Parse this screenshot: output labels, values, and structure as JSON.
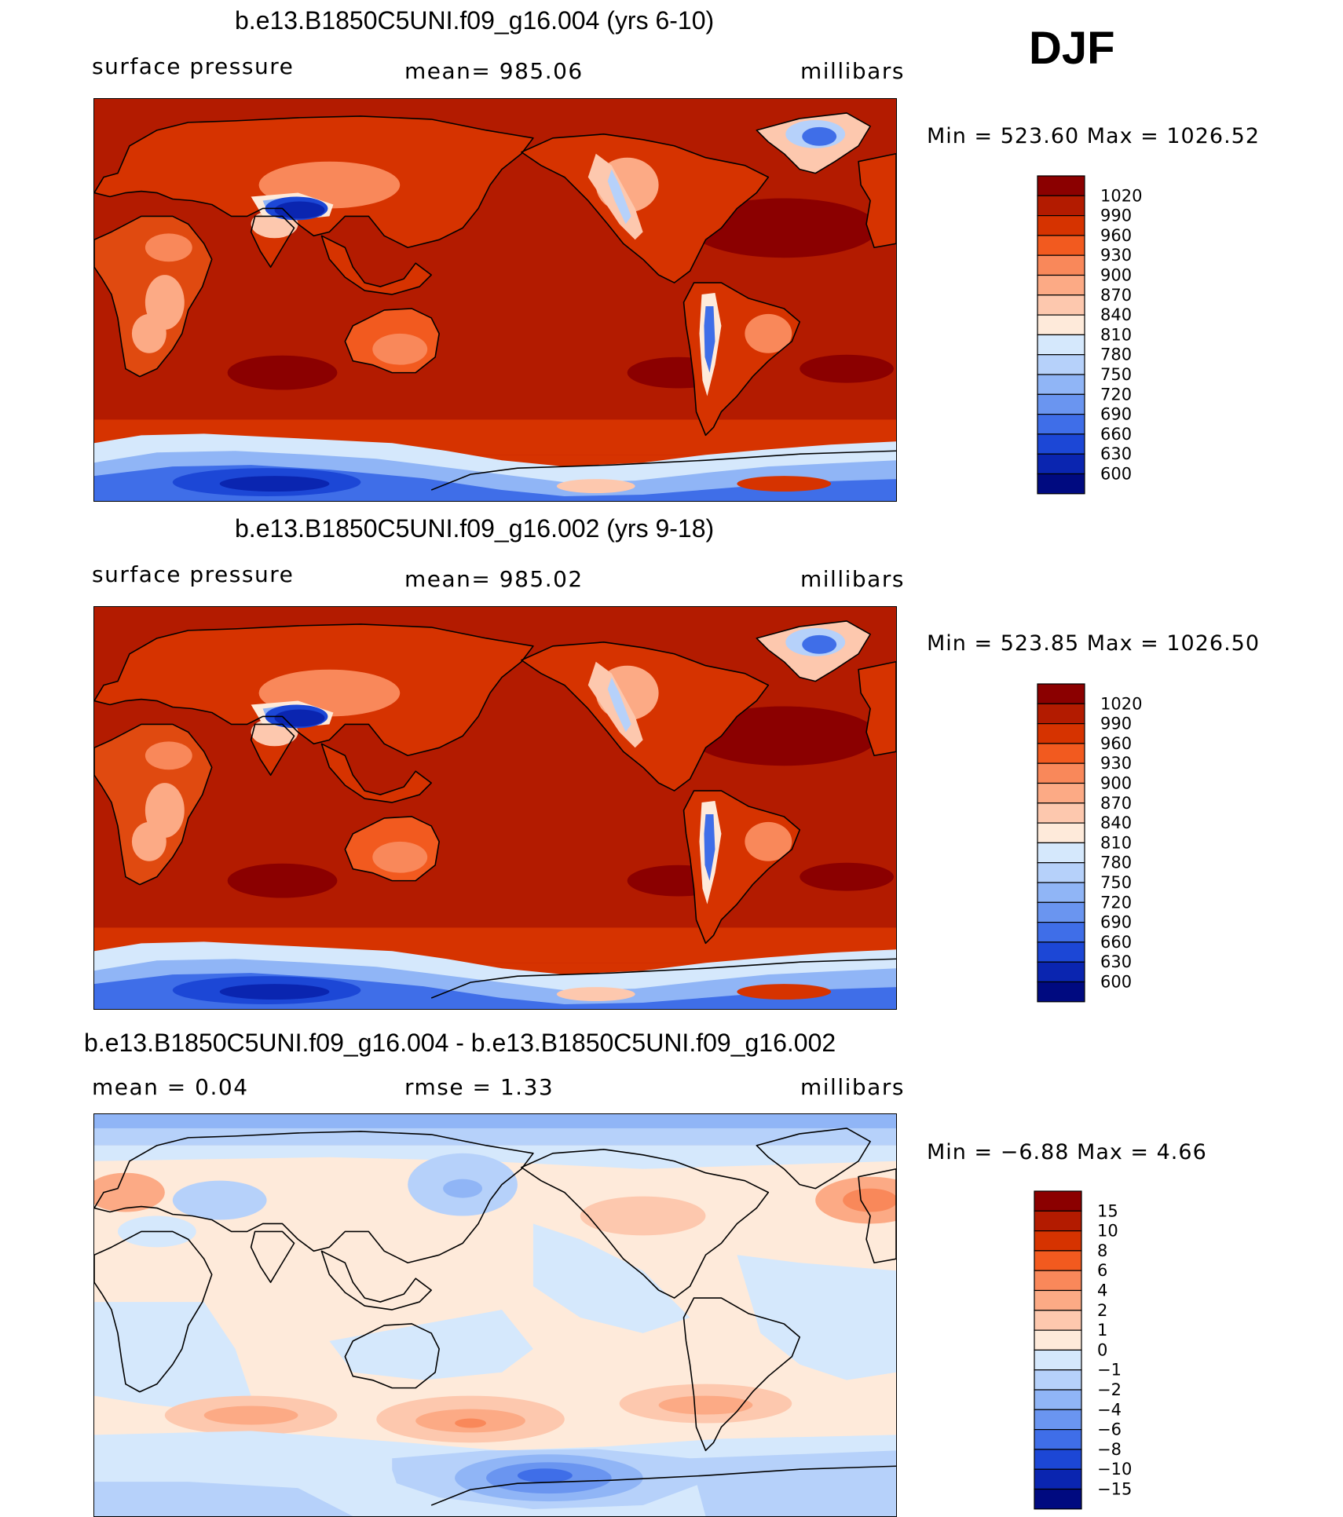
{
  "season": "DJF",
  "panels": [
    {
      "title": "b.e13.B1850C5UNI.f09_g16.004 (yrs 6-10)",
      "left": "surface pressure",
      "center": "mean=  985.06",
      "right": "millibars",
      "minmax": "Min  =  523.60  Max  =  1026.52",
      "map_type": "sp"
    },
    {
      "title": "b.e13.B1850C5UNI.f09_g16.002 (yrs 9-18)",
      "left": "surface pressure",
      "center": "mean=  985.02",
      "right": "millibars",
      "minmax": "Min  =  523.85  Max  =  1026.50",
      "map_type": "sp"
    },
    {
      "title": "b.e13.B1850C5UNI.f09_g16.004 - b.e13.B1850C5UNI.f09_g16.002",
      "left": "mean  =     0.04",
      "center": "rmse  =     1.33",
      "right": "millibars",
      "minmax": "Min  =    −6.88  Max  =     4.66",
      "map_type": "diff"
    }
  ],
  "chart_data": [
    {
      "type": "heatmap",
      "title": "b.e13.B1850C5UNI.f09_g16.004 (yrs 6-10)",
      "variable": "surface pressure",
      "units": "millibars",
      "mean": 985.06,
      "min": 523.6,
      "max": 1026.52,
      "levels": [
        "1020",
        "990",
        "960",
        "930",
        "900",
        "870",
        "840",
        "810",
        "780",
        "750",
        "720",
        "690",
        "660",
        "630",
        "600"
      ],
      "colors": [
        "#8b0000",
        "#b31b00",
        "#d63300",
        "#f25a1f",
        "#f9885a",
        "#fcaa85",
        "#fdc8ae",
        "#feeada",
        "#d5e8fc",
        "#b6d1fa",
        "#90b5f6",
        "#6a95f0",
        "#3f6ee8",
        "#1c47d6",
        "#0a25b0",
        "#000a80"
      ]
    },
    {
      "type": "heatmap",
      "title": "b.e13.B1850C5UNI.f09_g16.002 (yrs 9-18)",
      "variable": "surface pressure",
      "units": "millibars",
      "mean": 985.02,
      "min": 523.85,
      "max": 1026.5,
      "levels": [
        "1020",
        "990",
        "960",
        "930",
        "900",
        "870",
        "840",
        "810",
        "780",
        "750",
        "720",
        "690",
        "660",
        "630",
        "600"
      ],
      "colors": [
        "#8b0000",
        "#b31b00",
        "#d63300",
        "#f25a1f",
        "#f9885a",
        "#fcaa85",
        "#fdc8ae",
        "#feeada",
        "#d5e8fc",
        "#b6d1fa",
        "#90b5f6",
        "#6a95f0",
        "#3f6ee8",
        "#1c47d6",
        "#0a25b0",
        "#000a80"
      ]
    },
    {
      "type": "heatmap",
      "title": "b.e13.B1850C5UNI.f09_g16.004 - b.e13.B1850C5UNI.f09_g16.002",
      "units": "millibars",
      "mean": 0.04,
      "rmse": 1.33,
      "min": -6.88,
      "max": 4.66,
      "levels": [
        "15",
        "10",
        "8",
        "6",
        "4",
        "2",
        "1",
        "0",
        "−1",
        "−2",
        "−4",
        "−6",
        "−8",
        "−10",
        "−15"
      ],
      "colors": [
        "#8b0000",
        "#b31b00",
        "#d63300",
        "#f25a1f",
        "#f9885a",
        "#fcaa85",
        "#fdc8ae",
        "#feeada",
        "#d5e8fc",
        "#b6d1fa",
        "#90b5f6",
        "#6a95f0",
        "#3f6ee8",
        "#1c47d6",
        "#0a25b0",
        "#000a80"
      ]
    }
  ]
}
